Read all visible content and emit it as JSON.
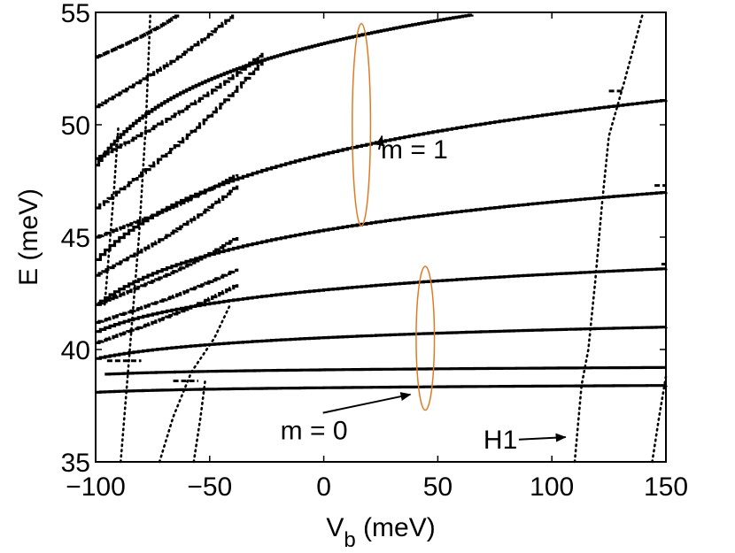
{
  "chart_data": {
    "type": "scatter",
    "title": "",
    "xlabel": {
      "main": "V",
      "sub": "b",
      "units": " (meV)"
    },
    "ylabel": "E (meV)",
    "xlim": [
      -100,
      150
    ],
    "ylim": [
      35,
      55
    ],
    "xticks": [
      -100,
      -50,
      0,
      50,
      100,
      150
    ],
    "xtick_labels": [
      "−100",
      "−50",
      "0",
      "50",
      "100",
      "150"
    ],
    "yticks": [
      35,
      40,
      45,
      50,
      55
    ],
    "ytick_labels": [
      "35",
      "40",
      "45",
      "50",
      "55"
    ],
    "grid": false,
    "colors": {
      "data": "#000000",
      "ellipse": "#e07b22",
      "axes": "#000000"
    },
    "flat_levels": [
      {
        "x0": -100,
        "x1": 150,
        "y0": 38.1,
        "y1": 38.4
      },
      {
        "x0": -96,
        "x1": 150,
        "y0": 38.9,
        "y1": 39.2
      },
      {
        "x0": -100,
        "x1": 150,
        "y0": 39.6,
        "y1": 41.0
      },
      {
        "x0": -100,
        "x1": 150,
        "y0": 40.8,
        "y1": 43.6
      },
      {
        "x0": -100,
        "x1": 150,
        "y0": 42.0,
        "y1": 47.0
      },
      {
        "x0": -100,
        "x1": 150,
        "y0": 44.0,
        "y1": 51.1
      },
      {
        "x0": -100,
        "x1": 65,
        "y0": 48.2,
        "y1": 54.9
      }
    ],
    "ladder_levels": [
      {
        "x0": -100,
        "x1": -64,
        "y0": 53.0,
        "y1": 54.9
      },
      {
        "x0": -100,
        "x1": -40,
        "y0": 50.8,
        "y1": 54.9
      },
      {
        "x0": -100,
        "x1": -27,
        "y0": 48.5,
        "y1": 53.2
      },
      {
        "x0": -100,
        "x1": -27,
        "y0": 46.3,
        "y1": 52.9
      },
      {
        "x0": -100,
        "x1": -38,
        "y0": 45.0,
        "y1": 47.8
      },
      {
        "x0": -100,
        "x1": -38,
        "y0": 43.3,
        "y1": 47.3
      },
      {
        "x0": -100,
        "x1": -38,
        "y0": 42.0,
        "y1": 45.0
      },
      {
        "x0": -100,
        "x1": -38,
        "y0": 41.2,
        "y1": 43.6
      },
      {
        "x0": -100,
        "x1": -38,
        "y0": 40.3,
        "y1": 42.9
      }
    ],
    "steep_curves": [
      {
        "name": "left-1",
        "points": [
          [
            -89,
            35
          ],
          [
            -85,
            40
          ],
          [
            -81,
            45
          ],
          [
            -78,
            50
          ],
          [
            -76,
            55
          ]
        ]
      },
      {
        "name": "left-2",
        "points": [
          [
            -96,
            42
          ],
          [
            -92,
            47
          ],
          [
            -90,
            50
          ]
        ]
      },
      {
        "name": "left-3",
        "points": [
          [
            -72,
            35
          ],
          [
            -66,
            37
          ],
          [
            -58,
            39
          ],
          [
            -48,
            40.5
          ],
          [
            -41,
            42
          ]
        ]
      },
      {
        "name": "left-4",
        "points": [
          [
            -57,
            35
          ],
          [
            -54,
            37
          ],
          [
            -52,
            38.6
          ]
        ]
      },
      {
        "name": "H1",
        "points": [
          [
            110,
            35
          ],
          [
            113,
            38.4
          ],
          [
            116,
            40
          ],
          [
            119,
            43
          ],
          [
            122,
            46.5
          ],
          [
            125,
            49.5
          ],
          [
            132,
            52
          ],
          [
            140,
            55
          ]
        ]
      },
      {
        "name": "right-2",
        "points": [
          [
            144,
            35
          ],
          [
            147,
            37
          ],
          [
            150,
            38.8
          ]
        ]
      }
    ],
    "short_dashes": [
      {
        "x0": -95,
        "x1": -80,
        "y": 39.5
      },
      {
        "x0": -66,
        "x1": -55,
        "y": 38.6
      },
      {
        "x0": 125,
        "x1": 131,
        "y": 51.5
      },
      {
        "x0": 145,
        "x1": 150,
        "y": 47.3
      },
      {
        "x0": 148,
        "x1": 150,
        "y": 43.8
      }
    ],
    "ellipses": [
      {
        "label": "m = 1",
        "cx": 16.5,
        "cy": 50.0,
        "rx": 4,
        "ry": 4.5
      },
      {
        "label": "m = 0",
        "cx": 44.5,
        "cy": 40.5,
        "rx": 4,
        "ry": 3.2
      }
    ],
    "annotations": [
      {
        "text": "m = 1",
        "x": 25,
        "y": 48.5,
        "arrow_to": [
          25.5,
          49.5
        ]
      },
      {
        "text": "m = 0",
        "x": -19,
        "y": 36.0,
        "arrow_to": [
          38,
          38.0
        ]
      },
      {
        "text": "H1",
        "x": 70,
        "y": 35.6,
        "arrow_to": [
          106,
          36.1
        ]
      }
    ]
  }
}
